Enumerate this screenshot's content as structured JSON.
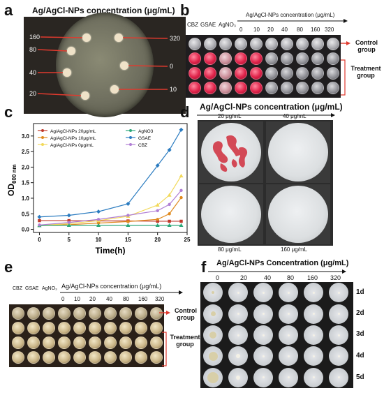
{
  "panels": {
    "a": {
      "letter": "a",
      "title": "Ag/AgCl-NPs concentration (μg/mL)",
      "labels_left": [
        "160",
        "80",
        "40",
        "20"
      ],
      "labels_right": [
        "320",
        "0",
        "10"
      ]
    },
    "b": {
      "letter": "b",
      "controls": [
        "CBZ",
        "GSAE",
        "AgNO₃"
      ],
      "title": "Ag/AgCl-NPs concentration (μg/mL)",
      "concentrations": [
        "0",
        "10",
        "20",
        "40",
        "80",
        "160",
        "320"
      ],
      "control_group": "Control group",
      "treatment_group": "Treatment group"
    },
    "c": {
      "letter": "c",
      "legend": [
        "Ag/AgCl-NPs 20μg/mL",
        "Ag/AgCl-NPs 10μg/mL",
        "Ag/AgCl-NPs  0μg/mL",
        "AgNO3",
        "GSAE",
        "CBZ"
      ],
      "colors": [
        "#c0392b",
        "#e08a1e",
        "#f2d95a",
        "#2ca87a",
        "#2a7bc0",
        "#b07fd4"
      ]
    },
    "d": {
      "letter": "d",
      "title": "Ag/AgCl-NPs concentration (μg/mL)",
      "captions": [
        "20 μg/mL",
        "40 μg/mL",
        "80 μg/mL",
        "160 μg/mL"
      ]
    },
    "e": {
      "letter": "e",
      "controls": [
        "CBZ",
        "GSAE",
        "AgNO₃"
      ],
      "title": "Ag/AgCl-NPs concentration (μg/mL)",
      "concentrations": [
        "0",
        "10",
        "20",
        "40",
        "80",
        "160",
        "320"
      ],
      "control_group": "Control group",
      "treatment_group": "Treatment group"
    },
    "f": {
      "letter": "f",
      "title": "Ag/AgCl-NPs Concentration (μg/mL)",
      "concentrations": [
        "0",
        "20",
        "40",
        "80",
        "160",
        "320"
      ],
      "days": [
        "1d",
        "2d",
        "3d",
        "4d",
        "5d"
      ]
    }
  },
  "chart_data": {
    "type": "line",
    "title": "",
    "xlabel": "Time(h)",
    "ylabel": "OD600 nm",
    "ylabel_main": "OD",
    "ylabel_sub": "600 nm",
    "xlim": [
      -1,
      25
    ],
    "ylim": [
      -0.1,
      3.4
    ],
    "xticks": [
      0,
      5,
      10,
      15,
      20,
      25
    ],
    "yticks": [
      0.0,
      0.5,
      1.0,
      1.5,
      2.0,
      2.5,
      3.0
    ],
    "ytick_labels": [
      "0.0",
      "0.5",
      "1.0",
      "1.5",
      "2.0",
      "2.5",
      "3.0"
    ],
    "x": [
      0,
      5,
      10,
      15,
      20,
      22,
      24
    ],
    "series": [
      {
        "name": "Ag/AgCl-NPs 20μg/mL",
        "values": [
          0.28,
          0.28,
          0.27,
          0.27,
          0.26,
          0.26,
          0.26
        ]
      },
      {
        "name": "Ag/AgCl-NPs 10μg/mL",
        "values": [
          0.12,
          0.15,
          0.2,
          0.25,
          0.32,
          0.5,
          1.02
        ]
      },
      {
        "name": "Ag/AgCl-NPs  0μg/mL",
        "values": [
          0.13,
          0.18,
          0.28,
          0.42,
          0.78,
          1.1,
          1.72
        ]
      },
      {
        "name": "AgNO3",
        "values": [
          0.12,
          0.13,
          0.13,
          0.13,
          0.13,
          0.13,
          0.13
        ]
      },
      {
        "name": "GSAE",
        "values": [
          0.4,
          0.45,
          0.57,
          0.82,
          2.05,
          2.55,
          3.2
        ]
      },
      {
        "name": "CBZ",
        "values": [
          0.14,
          0.22,
          0.32,
          0.45,
          0.6,
          0.8,
          1.25
        ]
      }
    ]
  }
}
